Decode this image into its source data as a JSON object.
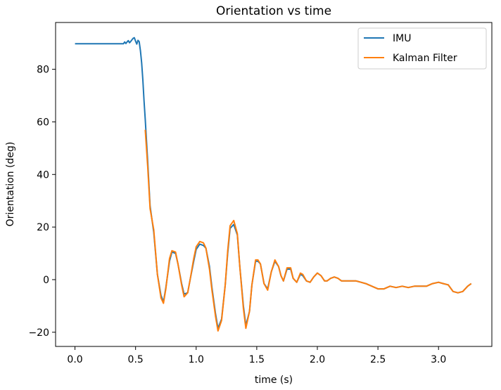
{
  "chart_data": {
    "type": "line",
    "title": "Orientation vs time",
    "xlabel": "time (s)",
    "ylabel": "Orientation (deg)",
    "xlim": [
      -0.16,
      3.44
    ],
    "ylim": [
      -25.4,
      97.8
    ],
    "xticks": [
      0.0,
      0.5,
      1.0,
      1.5,
      2.0,
      2.5,
      3.0
    ],
    "xtick_labels": [
      "0.0",
      "0.5",
      "1.0",
      "1.5",
      "2.0",
      "2.5",
      "3.0"
    ],
    "yticks": [
      -20,
      0,
      20,
      40,
      60,
      80
    ],
    "ytick_labels": [
      "−20",
      "0",
      "20",
      "40",
      "60",
      "80"
    ],
    "grid": false,
    "legend_position": "top-right",
    "series": [
      {
        "name": "IMU",
        "color": "#1f77b4",
        "x": [
          0.0,
          0.1,
          0.2,
          0.3,
          0.4,
          0.41,
          0.42,
          0.43,
          0.44,
          0.45,
          0.46,
          0.47,
          0.48,
          0.49,
          0.5,
          0.51,
          0.52,
          0.53,
          0.54,
          0.55,
          0.56,
          0.57,
          0.58,
          0.6,
          0.62,
          0.65,
          0.68,
          0.71,
          0.73,
          0.75,
          0.78,
          0.8,
          0.83,
          0.85,
          0.88,
          0.9,
          0.93,
          0.95,
          0.98,
          1.0,
          1.03,
          1.06,
          1.08,
          1.11,
          1.13,
          1.16,
          1.18,
          1.21,
          1.24,
          1.26,
          1.28,
          1.31,
          1.34,
          1.36,
          1.39,
          1.41,
          1.44,
          1.46,
          1.49,
          1.51,
          1.53,
          1.56,
          1.59,
          1.62,
          1.65,
          1.68,
          1.7,
          1.72,
          1.75,
          1.78,
          1.8,
          1.83,
          1.86,
          1.88,
          1.91,
          1.94,
          1.97,
          2.0,
          2.03,
          2.06,
          2.08,
          2.11,
          2.14,
          2.17,
          2.2,
          2.24,
          2.28,
          2.32,
          2.36,
          2.4,
          2.45,
          2.5,
          2.55,
          2.6,
          2.65,
          2.7,
          2.75,
          2.8,
          2.85,
          2.9,
          2.95,
          3.0,
          3.04,
          3.08,
          3.12,
          3.16,
          3.2,
          3.24,
          3.27
        ],
        "y": [
          89.7,
          89.7,
          89.7,
          89.7,
          89.7,
          90.4,
          89.8,
          90.4,
          90.9,
          90.1,
          90.6,
          91.2,
          91.8,
          92.0,
          90.7,
          89.6,
          91.0,
          90.5,
          87.0,
          82.5,
          76.0,
          68.0,
          61.0,
          45.0,
          28.0,
          18.0,
          2.0,
          -6.0,
          -8.5,
          -3.0,
          7.0,
          10.5,
          10.0,
          6.0,
          -1.5,
          -5.5,
          -5.0,
          0.0,
          7.0,
          11.5,
          13.5,
          13.0,
          12.0,
          5.0,
          -3.0,
          -13.0,
          -18.5,
          -15.0,
          -2.0,
          10.0,
          19.5,
          21.0,
          17.0,
          5.0,
          -10.0,
          -17.5,
          -12.0,
          -2.0,
          7.0,
          7.0,
          6.0,
          -1.5,
          -3.5,
          3.0,
          7.0,
          5.0,
          1.5,
          -0.5,
          4.0,
          4.0,
          0.5,
          -1.0,
          2.0,
          1.5,
          -0.5,
          -1.0,
          1.0,
          2.5,
          1.5,
          -0.5,
          -0.5,
          0.5,
          1.0,
          0.5,
          -0.5,
          -0.5,
          -0.5,
          -0.5,
          -1.0,
          -1.5,
          -2.5,
          -3.5,
          -3.5,
          -2.5,
          -3.0,
          -2.5,
          -3.0,
          -2.5,
          -2.5,
          -2.5,
          -1.5,
          -1.0,
          -1.5,
          -2.0,
          -4.5,
          -5.0,
          -4.5,
          -2.5,
          -1.5
        ]
      },
      {
        "name": "Kalman Filter",
        "color": "#ff7f0e",
        "x": [
          0.58,
          0.6,
          0.62,
          0.65,
          0.68,
          0.71,
          0.73,
          0.75,
          0.78,
          0.8,
          0.83,
          0.85,
          0.88,
          0.9,
          0.93,
          0.95,
          0.98,
          1.0,
          1.03,
          1.06,
          1.08,
          1.11,
          1.13,
          1.16,
          1.18,
          1.21,
          1.24,
          1.26,
          1.28,
          1.31,
          1.34,
          1.36,
          1.39,
          1.41,
          1.44,
          1.46,
          1.49,
          1.51,
          1.53,
          1.56,
          1.59,
          1.62,
          1.65,
          1.68,
          1.7,
          1.72,
          1.75,
          1.78,
          1.8,
          1.83,
          1.86,
          1.88,
          1.91,
          1.94,
          1.97,
          2.0,
          2.03,
          2.06,
          2.08,
          2.11,
          2.14,
          2.17,
          2.2,
          2.24,
          2.28,
          2.32,
          2.36,
          2.4,
          2.45,
          2.5,
          2.55,
          2.6,
          2.65,
          2.7,
          2.75,
          2.8,
          2.85,
          2.9,
          2.95,
          3.0,
          3.04,
          3.08,
          3.12,
          3.16,
          3.2,
          3.24,
          3.27
        ],
        "y": [
          57.0,
          43.0,
          27.0,
          19.0,
          2.0,
          -7.0,
          -9.0,
          -3.5,
          8.0,
          11.0,
          10.5,
          6.0,
          -2.0,
          -6.5,
          -5.0,
          0.0,
          8.0,
          12.5,
          14.5,
          14.0,
          12.0,
          4.0,
          -4.0,
          -14.0,
          -19.5,
          -15.5,
          -2.0,
          11.0,
          20.5,
          22.5,
          17.5,
          5.0,
          -11.0,
          -18.5,
          -12.0,
          -2.0,
          7.5,
          7.5,
          6.0,
          -1.5,
          -4.0,
          3.0,
          7.5,
          5.0,
          1.5,
          -0.5,
          4.5,
          4.5,
          0.5,
          -1.0,
          2.5,
          2.0,
          -0.5,
          -1.0,
          1.0,
          2.5,
          1.5,
          -0.5,
          -0.5,
          0.5,
          1.0,
          0.5,
          -0.5,
          -0.5,
          -0.5,
          -0.5,
          -1.0,
          -1.5,
          -2.5,
          -3.5,
          -3.5,
          -2.5,
          -3.0,
          -2.5,
          -3.0,
          -2.5,
          -2.5,
          -2.5,
          -1.5,
          -1.0,
          -1.5,
          -2.0,
          -4.5,
          -5.0,
          -4.5,
          -2.5,
          -1.5
        ]
      }
    ]
  }
}
